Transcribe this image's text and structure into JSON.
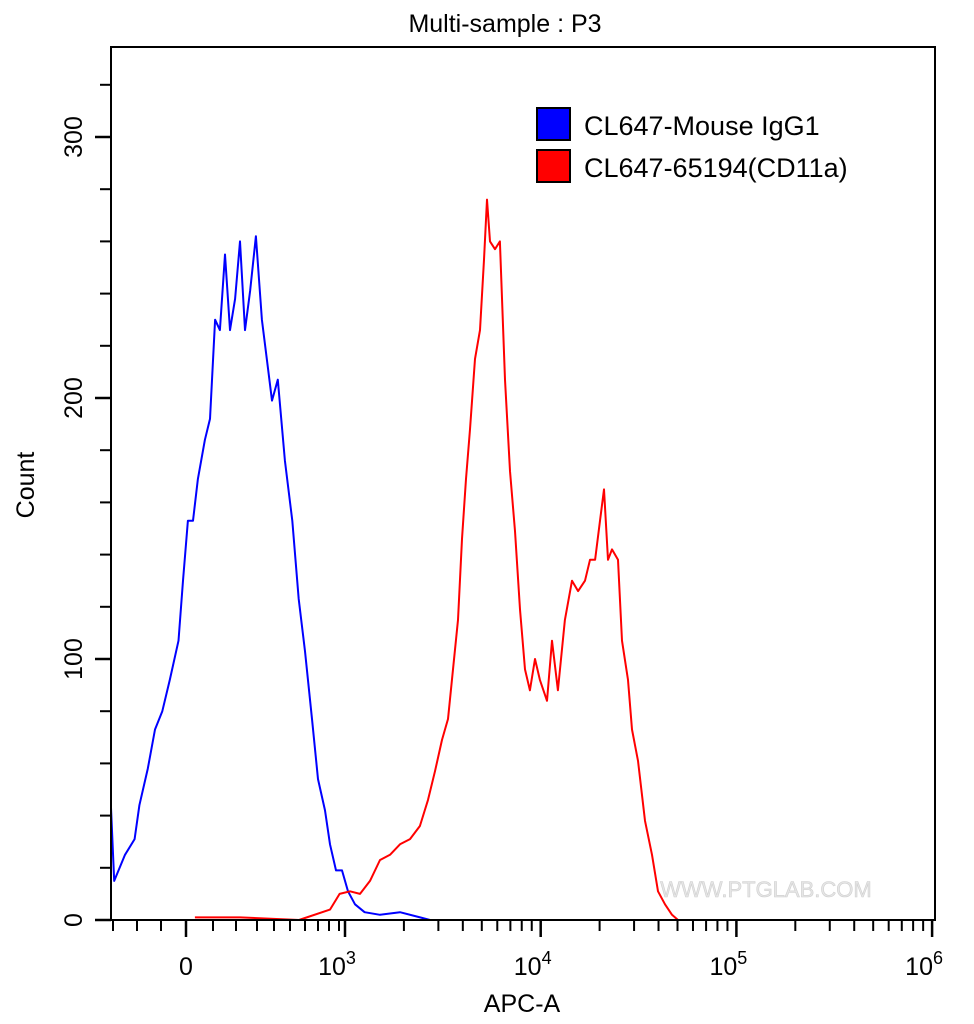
{
  "chart_data": {
    "type": "line",
    "title": "Multi-sample : P3",
    "xlabel": "APC-A",
    "ylabel": "Count",
    "x_scale": "biexponential",
    "xlim": [
      -310,
      1000000
    ],
    "ylim": [
      0,
      335
    ],
    "x_tick_labels": [
      {
        "value": 0,
        "label": "0",
        "exp": ""
      },
      {
        "value": 1000,
        "label": "10",
        "exp": "3"
      },
      {
        "value": 10000,
        "label": "10",
        "exp": "4"
      },
      {
        "value": 100000,
        "label": "10",
        "exp": "5"
      },
      {
        "value": 1000000,
        "label": "10",
        "exp": "6"
      }
    ],
    "y_ticks": [
      0,
      100,
      200,
      300
    ],
    "grid": false,
    "legend_position": "top-right",
    "watermark": "WWW.PTGLAB.COM",
    "series": [
      {
        "name": "CL647-Mouse IgG1",
        "color": "#0000ff",
        "points": [
          [
            -310,
            43
          ],
          [
            -295,
            15
          ],
          [
            -250,
            25
          ],
          [
            -210,
            31
          ],
          [
            -190,
            44
          ],
          [
            -155,
            58
          ],
          [
            -125,
            73
          ],
          [
            -95,
            80
          ],
          [
            -65,
            92
          ],
          [
            -30,
            107
          ],
          [
            -12,
            130
          ],
          [
            7,
            153
          ],
          [
            26,
            153
          ],
          [
            44,
            169
          ],
          [
            70,
            184
          ],
          [
            89,
            192
          ],
          [
            109,
            230
          ],
          [
            130,
            226
          ],
          [
            152,
            255
          ],
          [
            174,
            226
          ],
          [
            196,
            238
          ],
          [
            219,
            260
          ],
          [
            243,
            226
          ],
          [
            267,
            241
          ],
          [
            295,
            262
          ],
          [
            329,
            230
          ],
          [
            365,
            211
          ],
          [
            388,
            199
          ],
          [
            424,
            207
          ],
          [
            468,
            176
          ],
          [
            515,
            153
          ],
          [
            558,
            123
          ],
          [
            600,
            103
          ],
          [
            654,
            77
          ],
          [
            700,
            54
          ],
          [
            764,
            42
          ],
          [
            810,
            29
          ],
          [
            870,
            19
          ],
          [
            950,
            19
          ],
          [
            1036,
            11
          ],
          [
            1125,
            6
          ],
          [
            1260,
            3
          ],
          [
            1510,
            2
          ],
          [
            1910,
            3
          ],
          [
            2420,
            1
          ],
          [
            2720,
            0
          ]
        ]
      },
      {
        "name": "CL647-65194(CD11a)",
        "color": "#ff0000",
        "points": [
          [
            33,
            1
          ],
          [
            89,
            1
          ],
          [
            219,
            1
          ],
          [
            560,
            0
          ],
          [
            810,
            4
          ],
          [
            910,
            10
          ],
          [
            1060,
            11
          ],
          [
            1193,
            10
          ],
          [
            1342,
            15
          ],
          [
            1510,
            23
          ],
          [
            1698,
            25
          ],
          [
            1910,
            29
          ],
          [
            2148,
            31
          ],
          [
            2415,
            36
          ],
          [
            2655,
            46
          ],
          [
            2884,
            57
          ],
          [
            3131,
            69
          ],
          [
            3359,
            77
          ],
          [
            3565,
            96
          ],
          [
            3780,
            115
          ],
          [
            3963,
            146
          ],
          [
            4150,
            169
          ],
          [
            4352,
            188
          ],
          [
            4616,
            215
          ],
          [
            4894,
            226
          ],
          [
            5130,
            253
          ],
          [
            5318,
            276
          ],
          [
            5510,
            260
          ],
          [
            5840,
            257
          ],
          [
            6190,
            260
          ],
          [
            6570,
            207
          ],
          [
            6970,
            172
          ],
          [
            7390,
            149
          ],
          [
            7840,
            119
          ],
          [
            8310,
            96
          ],
          [
            8810,
            88
          ],
          [
            9350,
            100
          ],
          [
            9910,
            92
          ],
          [
            10770,
            84
          ],
          [
            11420,
            107
          ],
          [
            12250,
            88
          ],
          [
            13300,
            115
          ],
          [
            14450,
            130
          ],
          [
            15520,
            126
          ],
          [
            16840,
            130
          ],
          [
            17870,
            138
          ],
          [
            18960,
            138
          ],
          [
            20100,
            153
          ],
          [
            21060,
            165
          ],
          [
            22070,
            138
          ],
          [
            23130,
            142
          ],
          [
            24820,
            138
          ],
          [
            26020,
            107
          ],
          [
            27920,
            92
          ],
          [
            29290,
            73
          ],
          [
            31430,
            61
          ],
          [
            34130,
            38
          ],
          [
            37050,
            25
          ],
          [
            39740,
            11
          ],
          [
            43170,
            6
          ],
          [
            46870,
            2
          ],
          [
            50330,
            0
          ]
        ]
      }
    ]
  }
}
